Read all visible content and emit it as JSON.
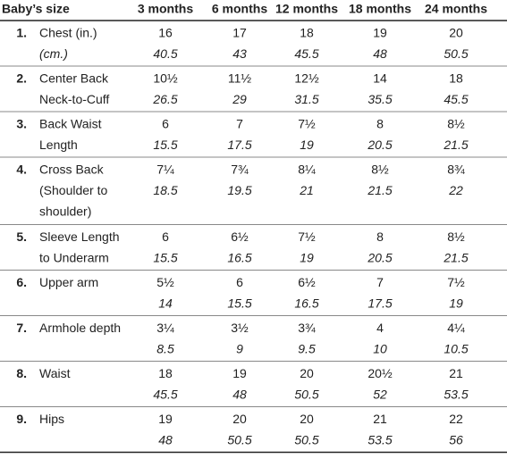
{
  "header": {
    "title": "Baby’s size",
    "columns": [
      "3 months",
      "6 months",
      "12 months",
      "18 months",
      "24 months"
    ]
  },
  "rows": [
    {
      "number": "1.",
      "label": [
        "Chest (in.)"
      ],
      "unit_label": "(cm.)",
      "inches": [
        "16",
        "17",
        "18",
        "19",
        "20"
      ],
      "cm": [
        "40.5",
        "43",
        "45.5",
        "48",
        "50.5"
      ]
    },
    {
      "number": "2.",
      "label": [
        "Center Back",
        "Neck-to-Cuff"
      ],
      "inches": [
        "10½",
        "11½",
        "12½",
        "14",
        "18"
      ],
      "cm": [
        "26.5",
        "29",
        "31.5",
        "35.5",
        "45.5"
      ]
    },
    {
      "number": "3.",
      "label": [
        "Back Waist",
        "Length"
      ],
      "inches": [
        "6",
        "7",
        "7½",
        "8",
        "8½"
      ],
      "cm": [
        "15.5",
        "17.5",
        "19",
        "20.5",
        "21.5"
      ]
    },
    {
      "number": "4.",
      "label": [
        "Cross Back",
        "(Shoulder to",
        "shoulder)"
      ],
      "inches": [
        "7¼",
        "7¾",
        "8¼",
        "8½",
        "8¾"
      ],
      "cm": [
        "18.5",
        "19.5",
        "21",
        "21.5",
        "22"
      ]
    },
    {
      "number": "5.",
      "label": [
        "Sleeve Length",
        "to Underarm"
      ],
      "inches": [
        "6",
        "6½",
        "7½",
        "8",
        "8½"
      ],
      "cm": [
        "15.5",
        "16.5",
        "19",
        "20.5",
        "21.5"
      ]
    },
    {
      "number": "6.",
      "label": [
        "Upper arm"
      ],
      "inches": [
        "5½",
        "6",
        "6½",
        "7",
        "7½"
      ],
      "cm": [
        "14",
        "15.5",
        "16.5",
        "17.5",
        "19"
      ]
    },
    {
      "number": "7.",
      "label": [
        "Armhole depth"
      ],
      "inches": [
        "3¼",
        "3½",
        "3¾",
        "4",
        "4¼"
      ],
      "cm": [
        "8.5",
        "9",
        "9.5",
        "10",
        "10.5"
      ]
    },
    {
      "number": "8.",
      "label": [
        "Waist"
      ],
      "inches": [
        "18",
        "19",
        "20",
        "20½",
        "21"
      ],
      "cm": [
        "45.5",
        "48",
        "50.5",
        "52",
        "53.5"
      ]
    },
    {
      "number": "9.",
      "label": [
        "Hips"
      ],
      "inches": [
        "19",
        "20",
        "20",
        "21",
        "22"
      ],
      "cm": [
        "48",
        "50.5",
        "50.5",
        "53.5",
        "56"
      ]
    }
  ]
}
